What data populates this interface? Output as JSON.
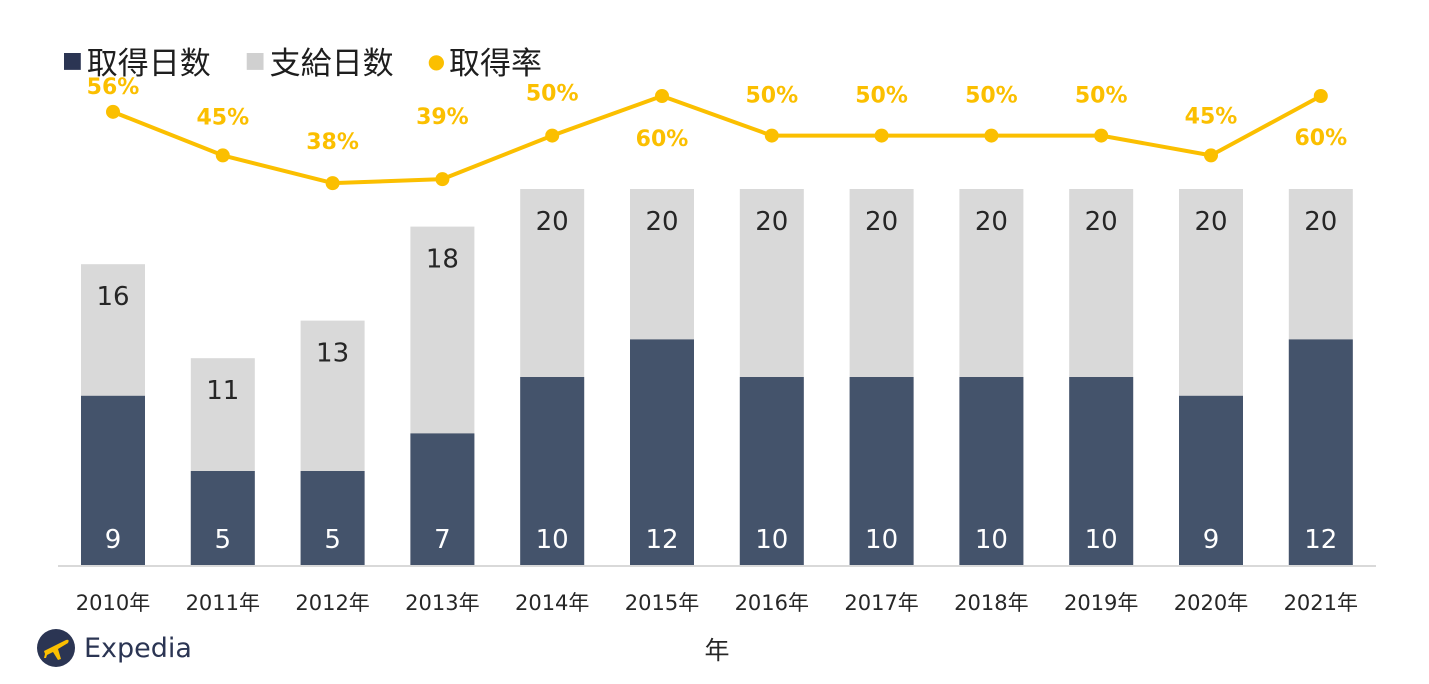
{
  "colors": {
    "taken": "#44536b",
    "given": "#d9d9d9",
    "rate": "#fbbf00",
    "axis": "#d9d9d9",
    "text": "#262626",
    "brand": "#2b3553"
  },
  "legend": {
    "taken_marker": "■",
    "taken_label": "取得日数",
    "given_marker": "■",
    "given_label": "支給日数",
    "rate_marker": "●",
    "rate_label": "取得率"
  },
  "brand": {
    "name": "Expedia",
    "icon": "airplane-icon"
  },
  "chart_data": {
    "type": "bar",
    "stacked": true,
    "categories": [
      "2010年",
      "2011年",
      "2012年",
      "2013年",
      "2014年",
      "2015年",
      "2016年",
      "2017年",
      "2018年",
      "2019年",
      "2020年",
      "2021年"
    ],
    "xlabel": "年",
    "series": [
      {
        "name": "取得日数",
        "type": "bar",
        "values": [
          9,
          5,
          5,
          7,
          10,
          12,
          10,
          10,
          10,
          10,
          9,
          12
        ]
      },
      {
        "name": "支給日数",
        "type": "bar",
        "totals": [
          16,
          11,
          13,
          18,
          20,
          20,
          20,
          20,
          20,
          20,
          20,
          20
        ]
      },
      {
        "name": "取得率",
        "type": "line",
        "values": [
          56,
          45,
          38,
          39,
          50,
          60,
          50,
          50,
          50,
          50,
          45,
          60
        ],
        "labels": [
          "56%",
          "45%",
          "38%",
          "39%",
          "50%",
          "60%",
          "50%",
          "50%",
          "50%",
          "50%",
          "45%",
          "60%"
        ]
      }
    ],
    "grid": false,
    "legend_position": "top-left"
  }
}
